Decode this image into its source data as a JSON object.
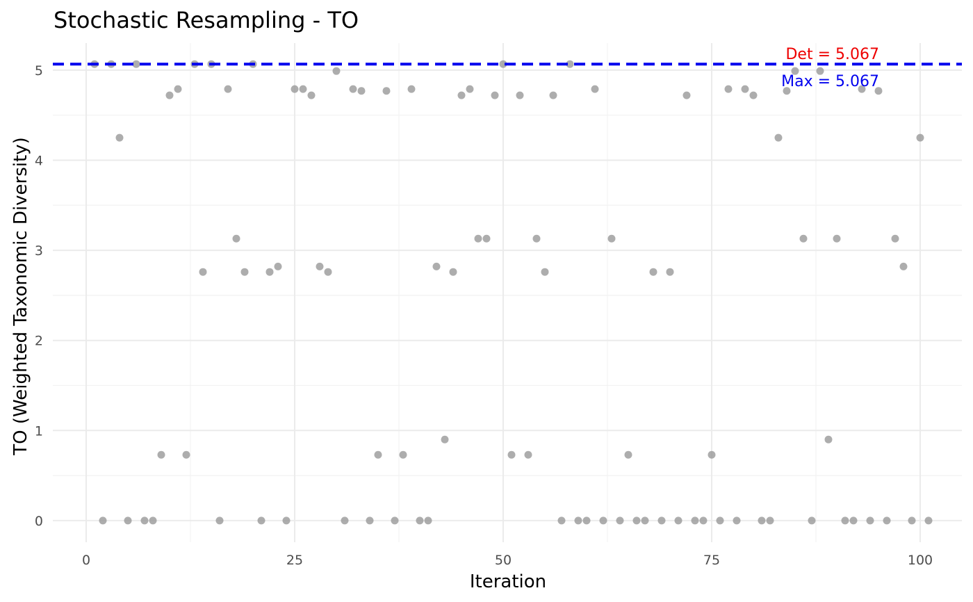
{
  "chart_data": {
    "type": "scatter",
    "title": "Stochastic Resampling - TO",
    "xlabel": "Iteration",
    "ylabel": "TO (Weighted Taxonomic Diversity)",
    "xlim": [
      -4,
      105
    ],
    "ylim": [
      -0.24,
      5.3
    ],
    "x_ticks": [
      0,
      25,
      50,
      75,
      100
    ],
    "y_ticks": [
      0,
      1,
      2,
      3,
      4,
      5
    ],
    "grid": true,
    "point_color": "#999999",
    "reference_line": {
      "y": 5.067,
      "color": "#0000ee",
      "style": "dashed"
    },
    "annotations": [
      {
        "label": "Det = 5.067",
        "color": "#ee0000",
        "y": 5.067
      },
      {
        "label": "Max = 5.067",
        "color": "#0000ee",
        "y": 5.067
      }
    ],
    "x": [
      1,
      2,
      3,
      4,
      5,
      6,
      7,
      8,
      9,
      10,
      11,
      12,
      13,
      14,
      15,
      16,
      17,
      18,
      19,
      20,
      21,
      22,
      23,
      24,
      25,
      26,
      27,
      28,
      29,
      30,
      31,
      32,
      33,
      34,
      35,
      36,
      37,
      38,
      39,
      40,
      41,
      42,
      43,
      44,
      45,
      46,
      47,
      48,
      49,
      50,
      51,
      52,
      53,
      54,
      55,
      56,
      57,
      58,
      59,
      60,
      61,
      62,
      63,
      64,
      65,
      66,
      67,
      68,
      69,
      70,
      71,
      72,
      73,
      74,
      75,
      76,
      77,
      78,
      79,
      80,
      81,
      82,
      83,
      84,
      85,
      86,
      87,
      88,
      89,
      90,
      91,
      92,
      93,
      94,
      95,
      96,
      97,
      98,
      99,
      100,
      101
    ],
    "y": [
      5.067,
      0,
      5.067,
      4.25,
      0,
      5.067,
      0,
      0,
      0.73,
      4.72,
      4.79,
      0.73,
      5.067,
      2.76,
      5.067,
      0,
      4.79,
      3.13,
      2.76,
      5.067,
      0,
      2.76,
      2.82,
      0,
      4.79,
      4.79,
      4.72,
      2.82,
      2.76,
      4.99,
      0,
      4.79,
      4.77,
      0,
      0.73,
      4.77,
      0,
      0.73,
      4.79,
      0,
      0,
      2.82,
      0.9,
      2.76,
      4.72,
      4.79,
      3.13,
      3.13,
      4.72,
      5.067,
      0.73,
      4.72,
      0.73,
      3.13,
      2.76,
      4.72,
      0,
      5.067,
      0,
      0,
      4.79,
      0,
      3.13,
      0,
      0.73,
      0,
      0,
      2.76,
      0,
      2.76,
      0,
      4.72,
      0,
      0,
      0.73,
      0,
      4.79,
      0,
      4.79,
      4.72,
      0,
      0,
      4.25,
      4.77,
      4.99,
      3.13,
      0,
      4.99,
      0.9,
      3.13,
      0,
      0,
      4.79,
      0,
      4.77,
      0,
      3.13,
      2.82,
      0,
      4.25,
      0
    ]
  }
}
